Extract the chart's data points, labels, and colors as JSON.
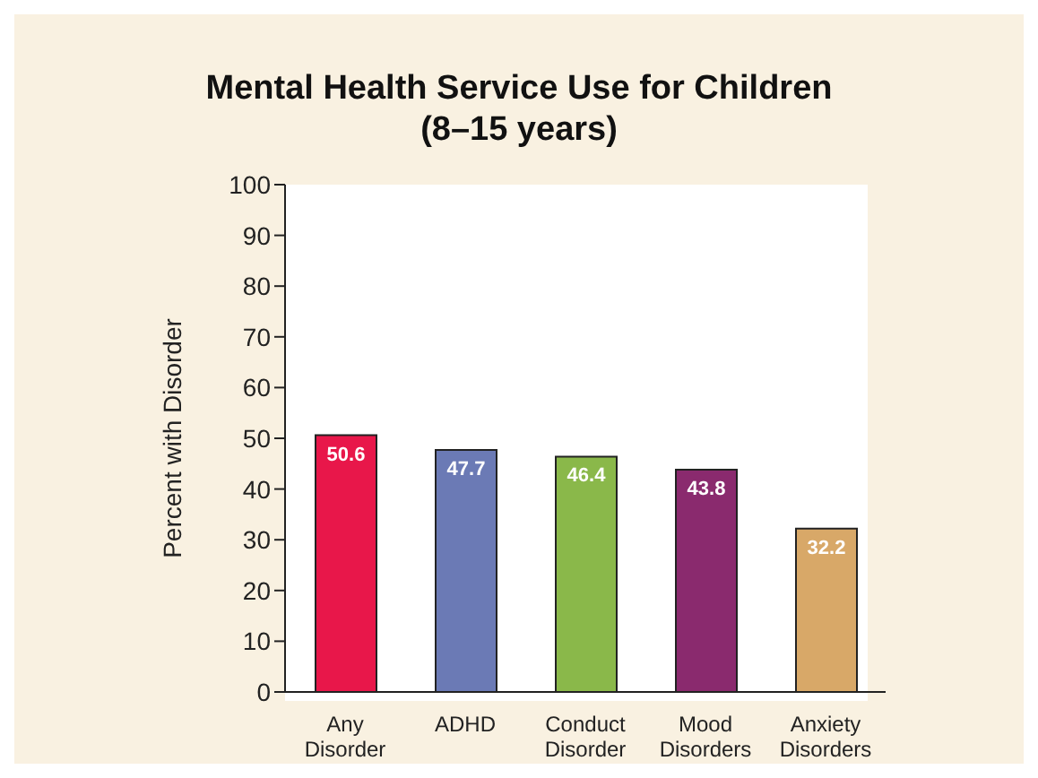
{
  "chart_data": {
    "type": "bar",
    "title": "Mental Health Service Use for Children\n(8–15 years)",
    "ylabel": "Percent with Disorder",
    "categories": [
      "Any\nDisorder",
      "ADHD",
      "Conduct\nDisorder",
      "Mood\nDisorders",
      "Anxiety\nDisorders"
    ],
    "values": [
      50.6,
      47.7,
      46.4,
      43.8,
      32.2
    ],
    "colors": [
      "#e8174a",
      "#6b7ab5",
      "#8ab84a",
      "#8a2a6e",
      "#d8a868"
    ],
    "ylim": [
      0,
      100
    ],
    "yticks": [
      0,
      10,
      20,
      30,
      40,
      50,
      60,
      70,
      80,
      90,
      100
    ],
    "data_labels": true
  }
}
